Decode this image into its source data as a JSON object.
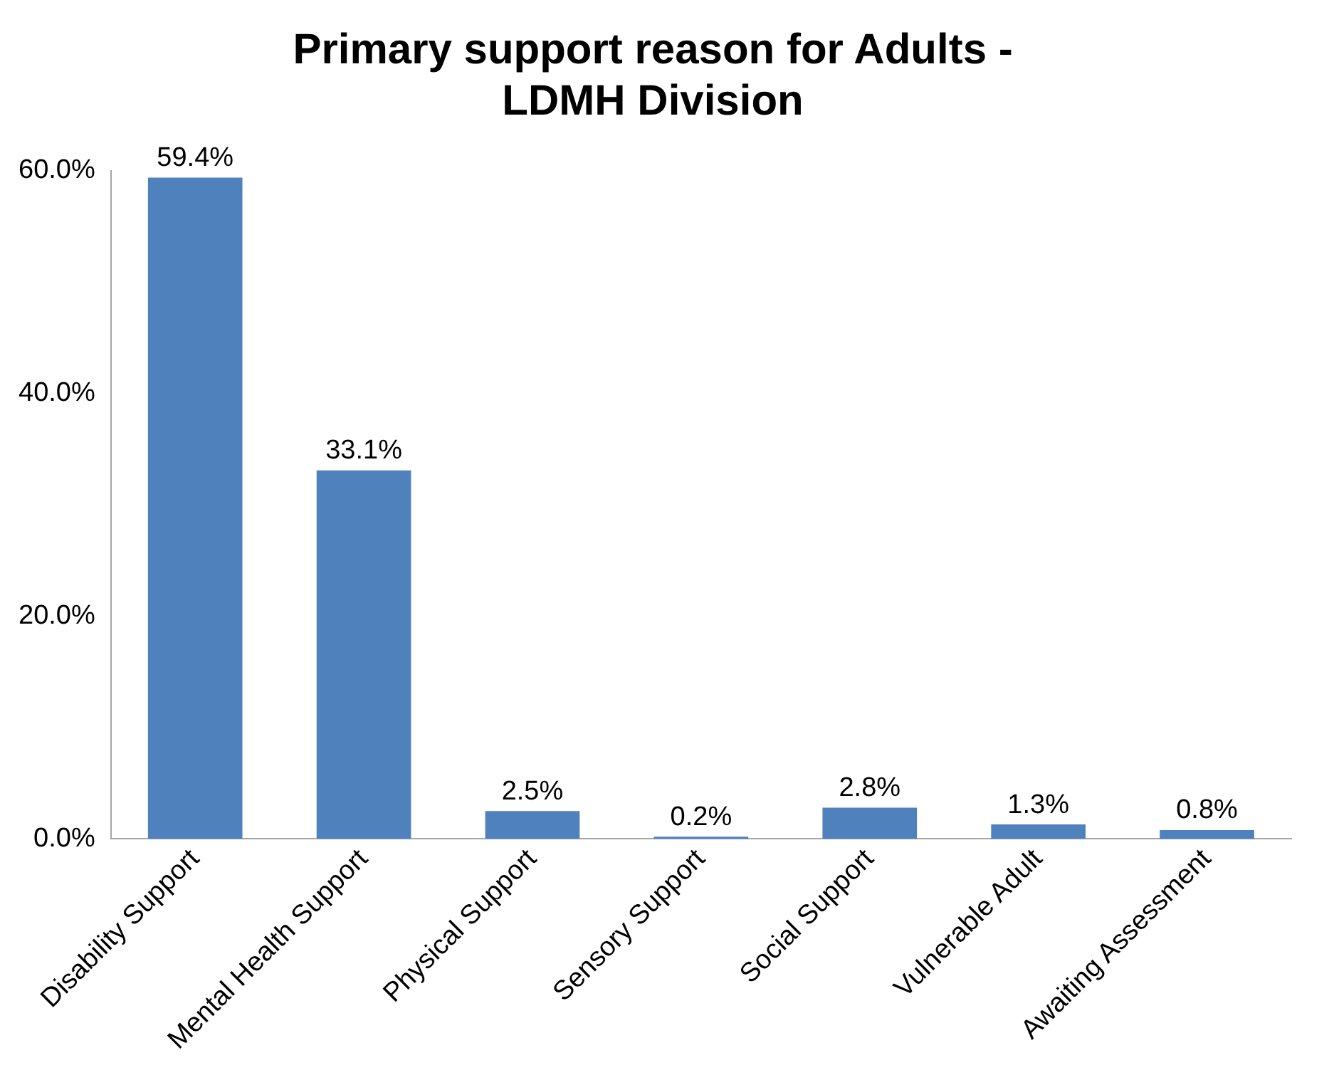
{
  "chart_data": {
    "type": "bar",
    "title": [
      "Primary support reason for Adults -",
      "LDMH Division"
    ],
    "categories": [
      "Disability Support",
      "Mental Health Support",
      "Physical Support",
      "Sensory Support",
      "Social Support",
      "Vulnerable Adult",
      "Awaiting Assessment"
    ],
    "values": [
      59.4,
      33.1,
      2.5,
      0.2,
      2.8,
      1.3,
      0.8
    ],
    "value_labels": [
      "59.4%",
      "33.1%",
      "2.5%",
      "0.2%",
      "2.8%",
      "1.3%",
      "0.8%"
    ],
    "color": "#4f81bd",
    "ylim": [
      0,
      60
    ],
    "yticks": [
      {
        "value": 0,
        "label": "0.0%"
      },
      {
        "value": 20,
        "label": "20.0%"
      },
      {
        "value": 40,
        "label": "40.0%"
      },
      {
        "value": 60,
        "label": "60.0%"
      }
    ],
    "grid": false,
    "legend": false
  }
}
